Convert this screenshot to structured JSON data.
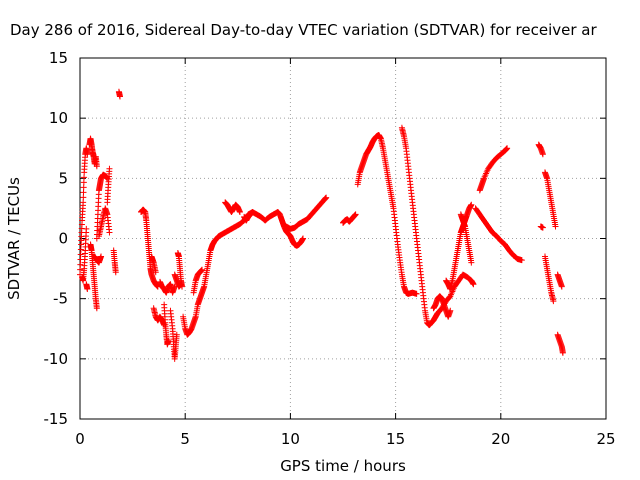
{
  "chart_data": {
    "type": "scatter",
    "title": "Day 286 of 2016, Sidereal Day-to-day VTEC variation (SDTVAR) for receiver ar",
    "xlabel": "GPS time / hours",
    "ylabel": "SDTVAR / TECUs",
    "xlim": [
      0,
      25
    ],
    "ylim": [
      -15,
      15
    ],
    "xticks": [
      "0",
      "5",
      "10",
      "15",
      "20",
      "25"
    ],
    "yticks": [
      "15",
      "10",
      "5",
      "0",
      "-5",
      "-10",
      "-15"
    ],
    "grid": true,
    "marker": "plus",
    "color": "#ff0000",
    "segments": [
      [
        [
          0.0,
          -3.0
        ],
        [
          0.05,
          -0.5
        ],
        [
          0.1,
          1.5
        ],
        [
          0.15,
          3.0
        ],
        [
          0.2,
          5.5
        ],
        [
          0.25,
          7.0
        ],
        [
          0.3,
          7.5
        ],
        [
          0.35,
          7.0
        ]
      ],
      [
        [
          0.1,
          -3.2
        ],
        [
          0.15,
          -3.5
        ],
        [
          0.2,
          -2.5
        ],
        [
          0.25,
          -1.0
        ],
        [
          0.3,
          0.8
        ]
      ],
      [
        [
          0.3,
          -3.8
        ],
        [
          0.35,
          -4.2
        ]
      ],
      [
        [
          0.45,
          7.8
        ],
        [
          0.5,
          8.3
        ],
        [
          0.55,
          7.8
        ],
        [
          0.6,
          7.2
        ],
        [
          0.65,
          6.8
        ],
        [
          0.7,
          6.2
        ],
        [
          0.75,
          6.8
        ],
        [
          0.8,
          6.0
        ]
      ],
      [
        [
          0.5,
          -0.5
        ],
        [
          0.55,
          -1.0
        ],
        [
          0.6,
          -2.0
        ],
        [
          0.65,
          -3.0
        ],
        [
          0.7,
          -4.0
        ],
        [
          0.75,
          -5.0
        ],
        [
          0.8,
          -5.8
        ]
      ],
      [
        [
          0.6,
          -1.5
        ],
        [
          0.7,
          -1.5
        ],
        [
          0.8,
          -1.8
        ],
        [
          0.9,
          -2.0
        ],
        [
          1.0,
          -1.5
        ]
      ],
      [
        [
          0.8,
          0.0
        ],
        [
          0.85,
          2.0
        ],
        [
          0.9,
          4.0
        ],
        [
          0.95,
          4.5
        ],
        [
          1.0,
          5.0
        ],
        [
          1.1,
          5.3
        ],
        [
          1.2,
          5.2
        ],
        [
          1.3,
          5.0
        ]
      ],
      [
        [
          0.9,
          0.2
        ],
        [
          1.0,
          1.0
        ],
        [
          1.1,
          1.8
        ],
        [
          1.2,
          2.5
        ],
        [
          1.3,
          2.0
        ],
        [
          1.4,
          0.5
        ]
      ],
      [
        [
          1.3,
          3.0
        ],
        [
          1.35,
          4.5
        ],
        [
          1.4,
          5.8
        ]
      ],
      [
        [
          1.6,
          -1.0
        ],
        [
          1.65,
          -2.0
        ],
        [
          1.7,
          -2.8
        ]
      ],
      [
        [
          1.85,
          12.2
        ],
        [
          1.9,
          11.8
        ]
      ],
      [
        [
          2.9,
          2.2
        ],
        [
          3.0,
          2.4
        ],
        [
          3.1,
          2.2
        ],
        [
          3.15,
          1.5
        ],
        [
          3.2,
          0.5
        ],
        [
          3.25,
          -0.5
        ],
        [
          3.3,
          -1.5
        ],
        [
          3.35,
          -2.5
        ],
        [
          3.4,
          -3.0
        ],
        [
          3.5,
          -3.5
        ],
        [
          3.6,
          -3.8
        ],
        [
          3.7,
          -4.0
        ]
      ],
      [
        [
          3.4,
          -1.5
        ],
        [
          3.5,
          -2.0
        ],
        [
          3.6,
          -2.8
        ]
      ],
      [
        [
          3.5,
          -5.8
        ],
        [
          3.6,
          -6.5
        ],
        [
          3.7,
          -6.8
        ],
        [
          3.8,
          -6.5
        ],
        [
          3.9,
          -6.8
        ],
        [
          4.0,
          -7.2
        ]
      ],
      [
        [
          3.8,
          -3.6
        ],
        [
          3.9,
          -4.0
        ],
        [
          4.0,
          -4.2
        ],
        [
          4.1,
          -4.5
        ],
        [
          4.2,
          -4.0
        ],
        [
          4.3,
          -3.8
        ],
        [
          4.4,
          -4.5
        ],
        [
          4.5,
          -4.0
        ]
      ],
      [
        [
          4.0,
          -5.5
        ],
        [
          4.05,
          -7.0
        ],
        [
          4.1,
          -8.0
        ],
        [
          4.15,
          -8.8
        ],
        [
          4.2,
          -8.5
        ]
      ],
      [
        [
          4.3,
          -6.0
        ],
        [
          4.4,
          -7.5
        ],
        [
          4.45,
          -8.8
        ],
        [
          4.5,
          -10.0
        ],
        [
          4.55,
          -9.0
        ],
        [
          4.6,
          -8.0
        ]
      ],
      [
        [
          4.5,
          -3.0
        ],
        [
          4.6,
          -3.5
        ],
        [
          4.7,
          -4.0
        ],
        [
          4.8,
          -3.8
        ]
      ],
      [
        [
          4.65,
          -1.2
        ],
        [
          4.7,
          -1.5
        ],
        [
          4.75,
          -2.5
        ],
        [
          4.8,
          -3.5
        ],
        [
          4.85,
          -4.0
        ]
      ],
      [
        [
          4.9,
          -6.5
        ],
        [
          5.0,
          -7.5
        ],
        [
          5.1,
          -8.0
        ],
        [
          5.2,
          -7.8
        ],
        [
          5.3,
          -7.5
        ],
        [
          5.4,
          -7.0
        ],
        [
          5.5,
          -6.5
        ],
        [
          5.6,
          -5.5
        ],
        [
          5.7,
          -5.0
        ],
        [
          5.8,
          -4.5
        ],
        [
          5.9,
          -4.0
        ],
        [
          6.0,
          -3.0
        ],
        [
          6.1,
          -2.0
        ],
        [
          6.2,
          -1.0
        ],
        [
          6.3,
          -0.5
        ],
        [
          6.4,
          -0.2
        ],
        [
          6.5,
          0.0
        ],
        [
          6.6,
          0.2
        ],
        [
          6.8,
          0.4
        ],
        [
          7.0,
          0.6
        ],
        [
          7.2,
          0.8
        ],
        [
          7.4,
          1.0
        ],
        [
          7.6,
          1.2
        ],
        [
          7.8,
          1.5
        ],
        [
          8.0,
          2.0
        ],
        [
          8.2,
          2.2
        ],
        [
          8.4,
          2.0
        ],
        [
          8.6,
          1.8
        ],
        [
          8.8,
          1.5
        ],
        [
          9.0,
          1.8
        ],
        [
          9.2,
          2.0
        ],
        [
          9.4,
          2.2
        ],
        [
          9.5,
          2.0
        ],
        [
          9.6,
          1.5
        ],
        [
          9.7,
          1.0
        ],
        [
          9.8,
          0.6
        ],
        [
          9.9,
          0.4
        ],
        [
          10.0,
          0.2
        ],
        [
          10.1,
          -0.2
        ],
        [
          10.2,
          -0.5
        ],
        [
          10.3,
          -0.6
        ],
        [
          10.4,
          -0.5
        ],
        [
          10.5,
          -0.3
        ],
        [
          10.6,
          0.0
        ]
      ],
      [
        [
          5.4,
          -4.5
        ],
        [
          5.5,
          -3.5
        ],
        [
          5.6,
          -3.0
        ],
        [
          5.7,
          -2.8
        ],
        [
          5.8,
          -2.6
        ]
      ],
      [
        [
          6.9,
          3.0
        ],
        [
          7.0,
          2.8
        ],
        [
          7.1,
          2.5
        ],
        [
          7.2,
          2.2
        ],
        [
          7.3,
          2.5
        ],
        [
          7.4,
          2.8
        ],
        [
          7.5,
          2.6
        ],
        [
          7.6,
          2.2
        ]
      ],
      [
        [
          7.8,
          1.8
        ],
        [
          7.9,
          1.5
        ],
        [
          8.0,
          1.8
        ],
        [
          8.1,
          2.0
        ]
      ],
      [
        [
          9.8,
          1.0
        ],
        [
          10.0,
          0.8
        ],
        [
          10.2,
          0.9
        ],
        [
          10.4,
          1.2
        ],
        [
          10.6,
          1.4
        ],
        [
          10.8,
          1.6
        ],
        [
          11.0,
          2.0
        ],
        [
          11.2,
          2.4
        ],
        [
          11.4,
          2.8
        ],
        [
          11.6,
          3.2
        ],
        [
          11.7,
          3.4
        ]
      ],
      [
        [
          12.5,
          1.3
        ],
        [
          12.6,
          1.5
        ],
        [
          12.7,
          1.6
        ],
        [
          12.8,
          1.4
        ],
        [
          12.9,
          1.6
        ],
        [
          13.0,
          1.8
        ],
        [
          13.1,
          2.0
        ]
      ],
      [
        [
          13.2,
          4.5
        ],
        [
          13.3,
          5.5
        ],
        [
          13.4,
          6.0
        ],
        [
          13.5,
          6.5
        ],
        [
          13.6,
          7.0
        ],
        [
          13.7,
          7.3
        ],
        [
          13.8,
          7.6
        ],
        [
          13.9,
          8.0
        ],
        [
          14.0,
          8.3
        ],
        [
          14.1,
          8.5
        ],
        [
          14.2,
          8.6
        ],
        [
          14.3,
          8.3
        ],
        [
          14.4,
          7.5
        ],
        [
          14.5,
          6.5
        ],
        [
          14.6,
          5.5
        ],
        [
          14.7,
          4.5
        ],
        [
          14.8,
          3.5
        ],
        [
          14.9,
          2.5
        ],
        [
          15.0,
          1.0
        ],
        [
          15.1,
          -0.5
        ],
        [
          15.2,
          -1.8
        ],
        [
          15.3,
          -3.0
        ],
        [
          15.4,
          -4.0
        ],
        [
          15.5,
          -4.5
        ],
        [
          15.6,
          -4.6
        ],
        [
          15.8,
          -4.5
        ],
        [
          16.0,
          -4.6
        ]
      ],
      [
        [
          15.3,
          9.2
        ],
        [
          15.4,
          8.5
        ],
        [
          15.5,
          7.5
        ],
        [
          15.6,
          6.0
        ],
        [
          15.7,
          4.5
        ],
        [
          15.8,
          3.0
        ],
        [
          15.9,
          1.5
        ],
        [
          16.0,
          0.0
        ],
        [
          16.1,
          -1.5
        ],
        [
          16.2,
          -3.0
        ],
        [
          16.3,
          -4.5
        ],
        [
          16.4,
          -6.0
        ],
        [
          16.5,
          -7.0
        ],
        [
          16.6,
          -7.2
        ],
        [
          16.7,
          -7.0
        ],
        [
          16.8,
          -6.8
        ],
        [
          16.9,
          -6.5
        ],
        [
          17.0,
          -6.2
        ],
        [
          17.2,
          -5.8
        ],
        [
          17.4,
          -5.2
        ],
        [
          17.6,
          -4.8
        ],
        [
          17.8,
          -4.0
        ],
        [
          18.0,
          -3.5
        ],
        [
          18.2,
          -3.0
        ],
        [
          18.4,
          -3.2
        ],
        [
          18.6,
          -3.5
        ],
        [
          18.7,
          -3.8
        ]
      ],
      [
        [
          16.8,
          -5.8
        ],
        [
          16.9,
          -5.5
        ],
        [
          17.0,
          -5.0
        ],
        [
          17.1,
          -4.8
        ],
        [
          17.2,
          -5.0
        ],
        [
          17.3,
          -5.5
        ],
        [
          17.4,
          -6.0
        ],
        [
          17.5,
          -6.5
        ],
        [
          17.6,
          -6.0
        ]
      ],
      [
        [
          17.4,
          -3.5
        ],
        [
          17.5,
          -3.8
        ],
        [
          17.6,
          -4.2
        ],
        [
          17.7,
          -3.5
        ],
        [
          17.8,
          -2.5
        ],
        [
          17.9,
          -1.5
        ],
        [
          18.0,
          -0.5
        ],
        [
          18.1,
          0.5
        ],
        [
          18.2,
          1.0
        ],
        [
          18.3,
          1.5
        ],
        [
          18.4,
          2.0
        ],
        [
          18.5,
          2.5
        ],
        [
          18.6,
          2.8
        ]
      ],
      [
        [
          18.1,
          2.0
        ],
        [
          18.2,
          1.5
        ],
        [
          18.3,
          1.0
        ],
        [
          18.4,
          0.0
        ],
        [
          18.5,
          -1.0
        ],
        [
          18.6,
          -2.0
        ]
      ],
      [
        [
          18.8,
          2.5
        ],
        [
          19.0,
          2.0
        ],
        [
          19.2,
          1.5
        ],
        [
          19.4,
          1.0
        ],
        [
          19.6,
          0.5
        ],
        [
          19.8,
          0.2
        ],
        [
          20.0,
          -0.2
        ],
        [
          20.2,
          -0.5
        ],
        [
          20.4,
          -1.0
        ],
        [
          20.6,
          -1.4
        ],
        [
          20.8,
          -1.7
        ],
        [
          21.0,
          -1.8
        ]
      ],
      [
        [
          19.0,
          4.0
        ],
        [
          19.1,
          4.5
        ],
        [
          19.2,
          5.0
        ],
        [
          19.4,
          5.8
        ],
        [
          19.6,
          6.3
        ],
        [
          19.8,
          6.7
        ],
        [
          20.0,
          7.0
        ],
        [
          20.2,
          7.3
        ],
        [
          20.3,
          7.5
        ]
      ],
      [
        [
          21.8,
          7.8
        ],
        [
          21.9,
          7.5
        ],
        [
          22.0,
          7.0
        ]
      ],
      [
        [
          21.9,
          1.0
        ],
        [
          22.0,
          0.9
        ]
      ],
      [
        [
          22.1,
          5.5
        ],
        [
          22.2,
          5.0
        ],
        [
          22.3,
          4.0
        ],
        [
          22.4,
          3.0
        ],
        [
          22.5,
          2.0
        ],
        [
          22.6,
          1.0
        ]
      ],
      [
        [
          22.1,
          -1.5
        ],
        [
          22.2,
          -2.5
        ],
        [
          22.3,
          -3.5
        ],
        [
          22.4,
          -4.5
        ],
        [
          22.5,
          -5.2
        ]
      ],
      [
        [
          22.7,
          -3.0
        ],
        [
          22.8,
          -3.5
        ],
        [
          22.9,
          -4.0
        ]
      ],
      [
        [
          22.7,
          -8.0
        ],
        [
          22.8,
          -8.5
        ],
        [
          22.9,
          -9.0
        ],
        [
          22.95,
          -9.5
        ]
      ]
    ]
  }
}
